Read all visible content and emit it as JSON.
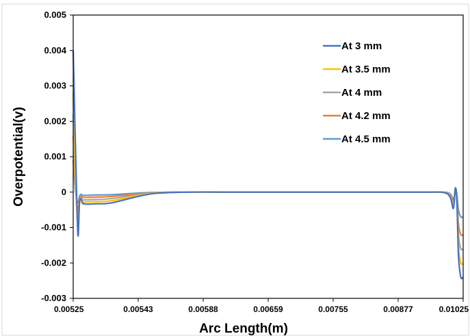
{
  "chart_data": {
    "type": "line",
    "title": "",
    "xlabel": "Arc Length(m)",
    "ylabel": "Overpotential(v)",
    "ylim": [
      -0.003,
      0.005
    ],
    "y_ticks": [
      "0.005",
      "0.004",
      "0.003",
      "0.002",
      "0.001",
      "0",
      "-0.001",
      "-0.002",
      "-0.003"
    ],
    "x_ticks": [
      "0.00525",
      "0.00543",
      "0.00588",
      "0.00659",
      "0.00755",
      "0.00877",
      "0.01025"
    ],
    "grid": false,
    "legend_position": "top-right",
    "x": [
      0.0,
      0.006,
      0.012,
      0.016,
      0.02,
      0.024,
      0.028,
      0.033,
      0.04,
      0.06,
      0.1,
      0.2,
      0.3,
      0.4,
      0.5,
      0.6,
      0.7,
      0.8,
      0.9,
      0.95,
      0.967,
      0.975,
      0.98,
      0.984,
      0.988,
      0.994,
      1.0
    ],
    "series": [
      {
        "name": "At 3 mm",
        "color": "#4472C4",
        "values": [
          0.004,
          0.0012,
          -0.0012,
          -0.0003,
          -0.0002,
          -0.00032,
          -0.00033,
          -0.00034,
          -0.00034,
          -0.00033,
          -0.0003,
          -5e-05,
          0.0,
          0.0,
          0.0,
          0.0,
          0.0,
          0.0,
          0.0,
          -1e-05,
          -0.00015,
          -0.00046,
          0.00012,
          -0.0003,
          -0.0018,
          -0.0024,
          -0.0024
        ]
      },
      {
        "name": "At 3.5 mm",
        "color": "#FFC000",
        "values": [
          0.0028,
          0.0004,
          -0.001,
          -0.00035,
          -0.0002,
          -0.00028,
          -0.00028,
          -0.00028,
          -0.00028,
          -0.00027,
          -0.00024,
          -4e-05,
          0.0,
          0.0,
          0.0,
          0.0,
          0.0,
          0.0,
          0.0,
          -1e-05,
          -0.00013,
          -0.0004,
          0.0001,
          -0.0002,
          -0.0015,
          -0.002,
          -0.002
        ]
      },
      {
        "name": "At 4 mm",
        "color": "#A5A5A5",
        "values": [
          0.0022,
          0.0002,
          -0.00075,
          -0.0003,
          -0.00015,
          -0.00022,
          -0.00022,
          -0.00022,
          -0.00022,
          -0.00021,
          -0.00018,
          -3e-05,
          0.0,
          0.0,
          0.0,
          0.0,
          0.0,
          0.0,
          0.0,
          -1e-05,
          -0.0001,
          -0.00034,
          8e-05,
          -0.00015,
          -0.0012,
          -0.0016,
          -0.0016
        ]
      },
      {
        "name": "At 4.2 mm",
        "color": "#ED7D31",
        "values": [
          0.0016,
          0.0001,
          -0.0005,
          -0.0002,
          -0.0001,
          -0.00015,
          -0.00015,
          -0.00015,
          -0.00015,
          -0.00014,
          -0.00012,
          -2e-05,
          0.0,
          0.0,
          0.0,
          0.0,
          0.0,
          0.0,
          0.0,
          -1e-05,
          -8e-05,
          -0.00028,
          6e-05,
          -0.0001,
          -0.0009,
          -0.0012,
          -0.0012
        ]
      },
      {
        "name": "At 4.5 mm",
        "color": "#5B9BD5",
        "values": [
          0.0009,
          0.0,
          -0.0003,
          -0.00012,
          -6e-05,
          -9e-05,
          -9e-05,
          -9e-05,
          -9e-05,
          -8e-05,
          -7e-05,
          -1e-05,
          0.0,
          0.0,
          0.0,
          0.0,
          0.0,
          0.0,
          0.0,
          0.0,
          -5e-05,
          -0.0002,
          4e-05,
          -5e-05,
          -0.0005,
          -0.0007,
          -0.0007
        ]
      }
    ]
  }
}
